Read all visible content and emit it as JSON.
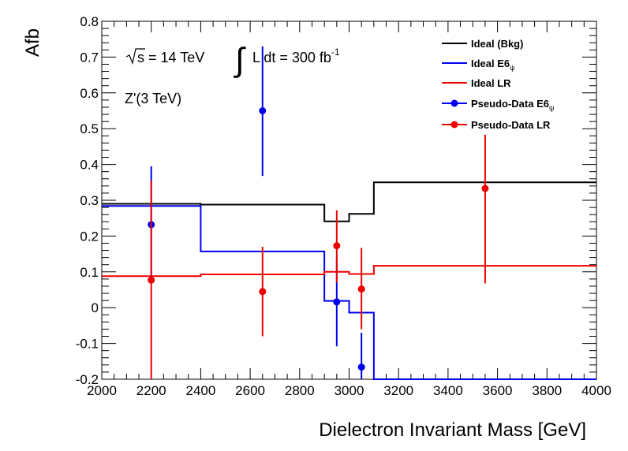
{
  "chart_data": {
    "type": "line",
    "title": "",
    "xlabel": "Dielectron Invariant Mass [GeV]",
    "ylabel": "Afb",
    "xlim": [
      2000,
      4000
    ],
    "ylim": [
      -0.2,
      0.8
    ],
    "xticks": [
      2000,
      2200,
      2400,
      2600,
      2800,
      3000,
      3200,
      3400,
      3600,
      3800,
      4000
    ],
    "yticks": [
      -0.2,
      -0.1,
      0,
      0.1,
      0.2,
      0.3,
      0.4,
      0.5,
      0.6,
      0.7,
      0.8
    ],
    "xtick_labels": [
      "2000",
      "2200",
      "2400",
      "2600",
      "2800",
      "3000",
      "3200",
      "3400",
      "3600",
      "3800",
      "4000"
    ],
    "ytick_labels": [
      "-0.2",
      "-0.1",
      "0",
      "0.1",
      "0.2",
      "0.3",
      "0.4",
      "0.5",
      "0.6",
      "0.7",
      "0.8"
    ],
    "annotations": {
      "sqrt_s": "s = 14 TeV",
      "lumi_prefix": "L dt = 300 fb",
      "lumi_exponent": "-1",
      "zprime": "Z'(3 TeV)"
    },
    "legend": {
      "placement": "top-right",
      "entries": [
        {
          "label": "Ideal (Bkg)",
          "label_sub": "",
          "series": "bkg"
        },
        {
          "label": "Ideal E6",
          "label_sub": "ψ",
          "series": "e6"
        },
        {
          "label": "Ideal LR",
          "label_sub": "",
          "series": "lr"
        },
        {
          "label": "Pseudo-Data E6",
          "label_sub": "ψ",
          "series": "pd_e6"
        },
        {
          "label": "Pseudo-Data LR",
          "label_sub": "",
          "series": "pd_lr"
        }
      ]
    },
    "series": [
      {
        "id": "bkg",
        "name": "Ideal (Bkg)",
        "style": "step",
        "color": "#000000",
        "edges": [
          2000,
          2400,
          2900,
          2950,
          3000,
          3100,
          4000
        ],
        "values": [
          0.29,
          0.288,
          0.241,
          0.241,
          0.262,
          0.35
        ]
      },
      {
        "id": "e6",
        "name": "Ideal E6psi",
        "style": "step",
        "color": "#0000ee",
        "edges": [
          2000,
          2400,
          2900,
          3000,
          3100,
          4000
        ],
        "values": [
          0.284,
          0.157,
          0.019,
          -0.014,
          -0.2
        ]
      },
      {
        "id": "lr",
        "name": "Ideal LR",
        "style": "step",
        "color": "#ee0000",
        "edges": [
          2000,
          2400,
          2900,
          3000,
          3100,
          4000
        ],
        "values": [
          0.088,
          0.093,
          0.1,
          0.094,
          0.117
        ]
      },
      {
        "id": "pd_e6",
        "name": "Pseudo-Data E6psi",
        "style": "points",
        "color": "#0000ee",
        "points": [
          {
            "x": 2200,
            "y": 0.232,
            "lo": 0.07,
            "hi": 0.395
          },
          {
            "x": 2650,
            "y": 0.55,
            "lo": 0.368,
            "hi": 0.73
          },
          {
            "x": 2950,
            "y": 0.016,
            "lo": -0.108,
            "hi": 0.14
          },
          {
            "x": 3050,
            "y": -0.166,
            "lo": -0.2,
            "hi": -0.07
          }
        ]
      },
      {
        "id": "pd_lr",
        "name": "Pseudo-Data LR",
        "style": "points",
        "color": "#ee0000",
        "points": [
          {
            "x": 2200,
            "y": 0.077,
            "lo": -0.2,
            "hi": 0.355
          },
          {
            "x": 2650,
            "y": 0.045,
            "lo": -0.08,
            "hi": 0.17
          },
          {
            "x": 2950,
            "y": 0.173,
            "lo": 0.07,
            "hi": 0.272
          },
          {
            "x": 3050,
            "y": 0.052,
            "lo": -0.06,
            "hi": 0.167
          },
          {
            "x": 3550,
            "y": 0.333,
            "lo": 0.068,
            "hi": 0.483
          }
        ]
      }
    ]
  }
}
